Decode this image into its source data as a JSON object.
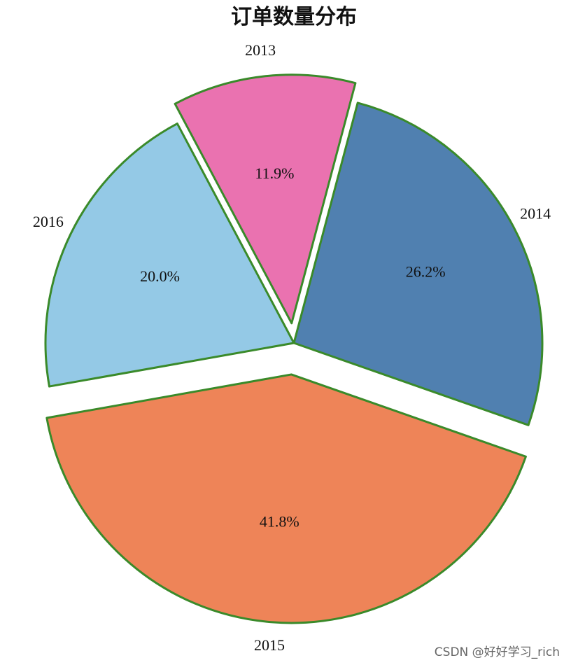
{
  "chart_data": {
    "type": "pie",
    "title": "订单数量分布",
    "categories": [
      "2013",
      "2014",
      "2015",
      "2016"
    ],
    "values": [
      11.9,
      26.2,
      41.8,
      20.0
    ],
    "value_labels": [
      "11.9%",
      "26.2%",
      "41.8%",
      "20.0%"
    ],
    "colors": [
      "#ea72b0",
      "#5080b0",
      "#ee8458",
      "#94c9e6"
    ],
    "edge_color": "#3a8a2a",
    "explode": [
      0.08,
      0,
      0.127,
      0
    ],
    "start_angle": 118,
    "counterclock": false
  },
  "watermark": "CSDN @好好学习_rich"
}
